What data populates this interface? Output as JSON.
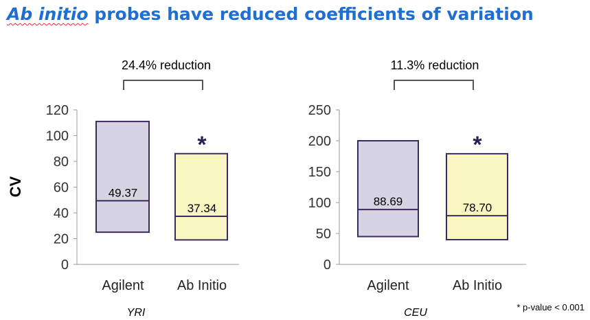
{
  "title": {
    "italic": "Ab initio",
    "rest": " probes have reduced coefficients of variation"
  },
  "colors": {
    "title": "#1f6fd1",
    "agilent_fill": "#d6d4e2",
    "abinitio_fill": "#faf6c2",
    "box_stroke": "#3b2a5c",
    "asterisk": "#2a1f55"
  },
  "footnote": "* p-value < 0.001",
  "chart_data": [
    {
      "type": "box",
      "subtitle": "YRI",
      "ylabel": "CV",
      "ylim": [
        0,
        120
      ],
      "yticks": [
        0,
        20,
        40,
        60,
        80,
        100,
        120
      ],
      "categories": [
        "Agilent",
        "Ab Initio"
      ],
      "boxes": [
        {
          "category": "Agilent",
          "low": 25,
          "median": 49.37,
          "high": 111,
          "label": "49.37",
          "significant": false
        },
        {
          "category": "Ab Initio",
          "low": 19,
          "median": 37.34,
          "high": 86,
          "label": "37.34",
          "significant": true
        }
      ],
      "annotation": "24.4% reduction",
      "grid": false
    },
    {
      "type": "box",
      "subtitle": "CEU",
      "ylabel": "",
      "ylim": [
        0,
        250
      ],
      "yticks": [
        0,
        50,
        100,
        150,
        200,
        250
      ],
      "categories": [
        "Agilent",
        "Ab Initio"
      ],
      "boxes": [
        {
          "category": "Agilent",
          "low": 45,
          "median": 88.69,
          "high": 200,
          "label": "88.69",
          "significant": false
        },
        {
          "category": "Ab Initio",
          "low": 40,
          "median": 78.7,
          "high": 179,
          "label": "78.70",
          "significant": true
        }
      ],
      "annotation": "11.3% reduction",
      "grid": false
    }
  ]
}
